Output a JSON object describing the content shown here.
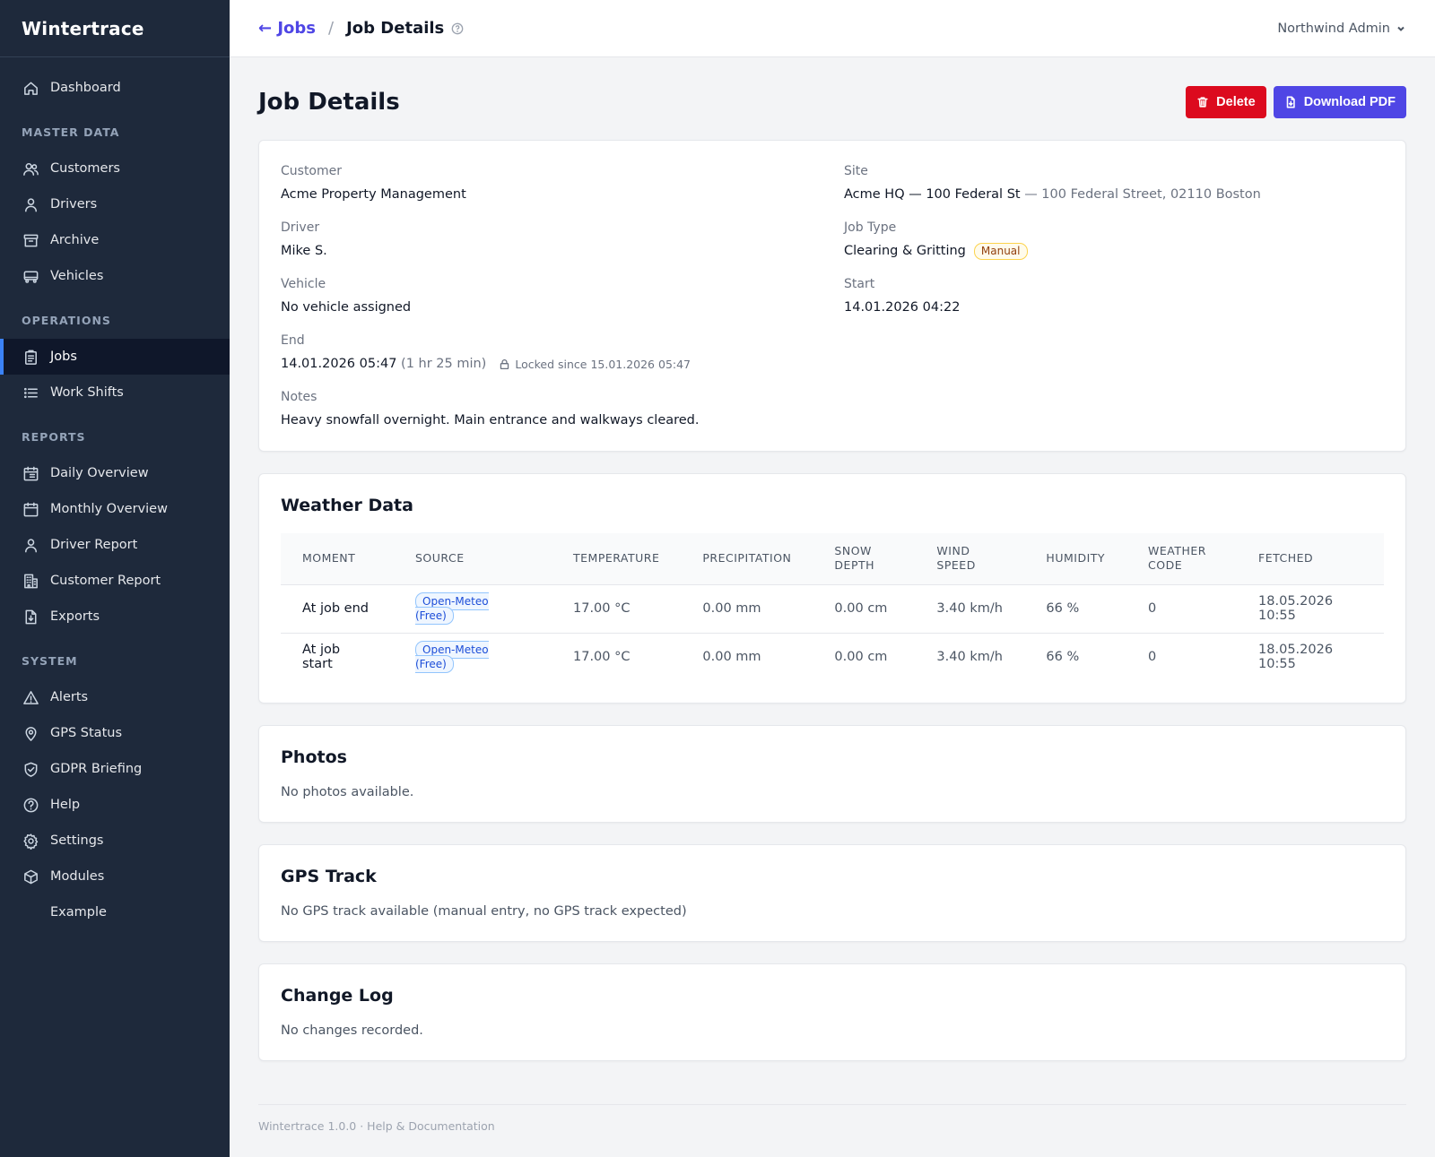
{
  "app": {
    "brand": "Wintertrace"
  },
  "sidebar": {
    "top": [
      {
        "label": "Dashboard",
        "icon": "home-icon"
      }
    ],
    "sections": [
      {
        "title": "MASTER DATA",
        "items": [
          {
            "label": "Customers",
            "icon": "users-icon"
          },
          {
            "label": "Drivers",
            "icon": "user-icon"
          },
          {
            "label": "Archive",
            "icon": "archive-icon"
          },
          {
            "label": "Vehicles",
            "icon": "truck-icon"
          }
        ]
      },
      {
        "title": "OPERATIONS",
        "items": [
          {
            "label": "Jobs",
            "icon": "clipboard-icon",
            "active": true
          },
          {
            "label": "Work Shifts",
            "icon": "list-icon"
          }
        ]
      },
      {
        "title": "REPORTS",
        "items": [
          {
            "label": "Daily Overview",
            "icon": "calendar-day-icon"
          },
          {
            "label": "Monthly Overview",
            "icon": "calendar-icon"
          },
          {
            "label": "Driver Report",
            "icon": "user-icon"
          },
          {
            "label": "Customer Report",
            "icon": "building-icon"
          },
          {
            "label": "Exports",
            "icon": "file-download-icon"
          }
        ]
      },
      {
        "title": "SYSTEM",
        "items": [
          {
            "label": "Alerts",
            "icon": "warning-icon"
          },
          {
            "label": "GPS Status",
            "icon": "map-pin-icon"
          },
          {
            "label": "GDPR Briefing",
            "icon": "shield-check-icon"
          },
          {
            "label": "Help",
            "icon": "question-circle-icon"
          },
          {
            "label": "Settings",
            "icon": "gear-icon"
          },
          {
            "label": "Modules",
            "icon": "cube-icon"
          },
          {
            "label": "Example",
            "icon": ""
          }
        ]
      }
    ]
  },
  "topbar": {
    "back_label": "← Jobs",
    "separator": "/",
    "current": "Job Details",
    "user": "Northwind Admin"
  },
  "page": {
    "title": "Job Details",
    "delete_label": "Delete",
    "pdf_label": "Download PDF"
  },
  "details": {
    "customer_label": "Customer",
    "customer": "Acme Property Management",
    "site_label": "Site",
    "site_name": "Acme HQ — 100 Federal St",
    "site_address": "— 100 Federal Street, 02110 Boston",
    "driver_label": "Driver",
    "driver": "Mike S.",
    "job_type_label": "Job Type",
    "job_type": "Clearing & Gritting",
    "job_type_badge": "Manual",
    "vehicle_label": "Vehicle",
    "vehicle": "No vehicle assigned",
    "start_label": "Start",
    "start": "14.01.2026 04:22",
    "end_label": "End",
    "end": "14.01.2026 05:47",
    "duration": "(1 hr 25 min)",
    "lock_text": "Locked since 15.01.2026 05:47",
    "notes_label": "Notes",
    "notes": "Heavy snowfall overnight. Main entrance and walkways cleared."
  },
  "weather": {
    "title": "Weather Data",
    "columns": [
      "MOMENT",
      "SOURCE",
      "TEMPERATURE",
      "PRECIPITATION",
      "SNOW DEPTH",
      "WIND SPEED",
      "HUMIDITY",
      "WEATHER CODE",
      "FETCHED"
    ],
    "rows": [
      {
        "moment": "At job end",
        "source": "Open-Meteo (Free)",
        "temperature": "17.00 °C",
        "precipitation": "0.00 mm",
        "snow_depth": "0.00 cm",
        "wind_speed": "3.40 km/h",
        "humidity": "66 %",
        "weather_code": "0",
        "fetched": "18.05.2026 10:55"
      },
      {
        "moment": "At job start",
        "source": "Open-Meteo (Free)",
        "temperature": "17.00 °C",
        "precipitation": "0.00 mm",
        "snow_depth": "0.00 cm",
        "wind_speed": "3.40 km/h",
        "humidity": "66 %",
        "weather_code": "0",
        "fetched": "18.05.2026 10:55"
      }
    ]
  },
  "photos": {
    "title": "Photos",
    "empty": "No photos available."
  },
  "gps": {
    "title": "GPS Track",
    "empty": "No GPS track available (manual entry, no GPS track expected)"
  },
  "changelog": {
    "title": "Change Log",
    "empty": "No changes recorded."
  },
  "footer": {
    "text": "Wintertrace 1.0.0 · Help & Documentation"
  },
  "colors": {
    "sidebar_bg": "#1e293b",
    "accent": "#4f46e5",
    "danger": "#dc0a1e",
    "active_indicator": "#3b82f6"
  }
}
